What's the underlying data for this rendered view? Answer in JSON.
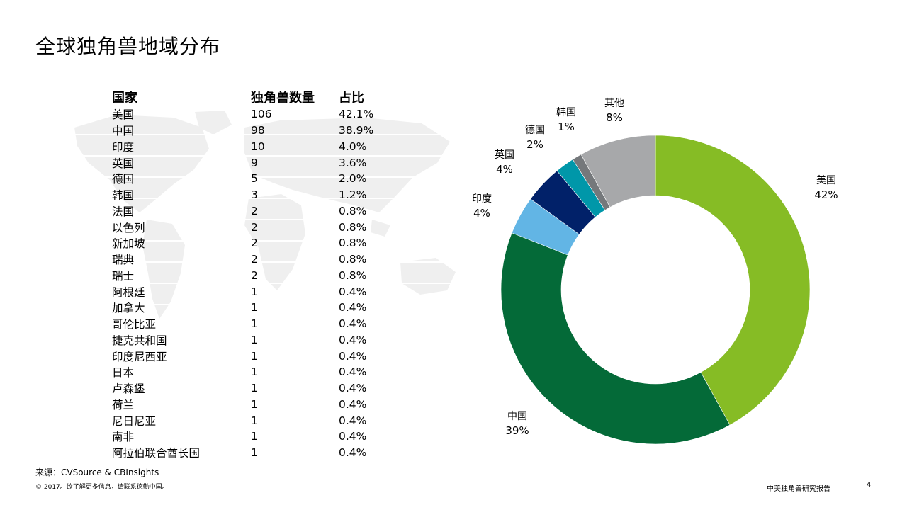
{
  "page": {
    "title": "全球独角兽地域分布",
    "source": "来源：CVSource & CBInsights",
    "copyright": "© 2017。欲了解更多信息，请联系德勤中国。",
    "report_name": "中美独角兽研究报告",
    "page_number": "4"
  },
  "table": {
    "headers": [
      "国家",
      "独角兽数量",
      "占比"
    ],
    "rows": [
      [
        "美国",
        "106",
        "42.1%"
      ],
      [
        "中国",
        "98",
        "38.9%"
      ],
      [
        "印度",
        "10",
        "4.0%"
      ],
      [
        "英国",
        "9",
        "3.6%"
      ],
      [
        "德国",
        "5",
        "2.0%"
      ],
      [
        "韩国",
        "3",
        "1.2%"
      ],
      [
        "法国",
        "2",
        "0.8%"
      ],
      [
        "以色列",
        "2",
        "0.8%"
      ],
      [
        "新加坡",
        "2",
        "0.8%"
      ],
      [
        "瑞典",
        "2",
        "0.8%"
      ],
      [
        "瑞士",
        "2",
        "0.8%"
      ],
      [
        "阿根廷",
        "1",
        "0.4%"
      ],
      [
        "加拿大",
        "1",
        "0.4%"
      ],
      [
        "哥伦比亚",
        "1",
        "0.4%"
      ],
      [
        "捷克共和国",
        "1",
        "0.4%"
      ],
      [
        "印度尼西亚",
        "1",
        "0.4%"
      ],
      [
        "日本",
        "1",
        "0.4%"
      ],
      [
        "卢森堡",
        "1",
        "0.4%"
      ],
      [
        "荷兰",
        "1",
        "0.4%"
      ],
      [
        "尼日尼亚",
        "1",
        "0.4%"
      ],
      [
        "南非",
        "1",
        "0.4%"
      ],
      [
        "阿拉伯联合酋长国",
        "1",
        "0.4%"
      ]
    ]
  },
  "chart_data": {
    "type": "pie",
    "donut": true,
    "categories": [
      "美国",
      "中国",
      "印度",
      "英国",
      "德国",
      "韩国",
      "其他"
    ],
    "values": [
      42,
      39,
      4,
      4,
      2,
      1,
      8
    ],
    "value_labels": [
      "42%",
      "39%",
      "4%",
      "4%",
      "2%",
      "1%",
      "8%"
    ],
    "colors": [
      "#86BC25",
      "#046A38",
      "#62B5E5",
      "#012169",
      "#0097A9",
      "#75787B",
      "#A7A8AA"
    ],
    "start": "12 o'clock",
    "direction": "clockwise",
    "legend": "none"
  }
}
